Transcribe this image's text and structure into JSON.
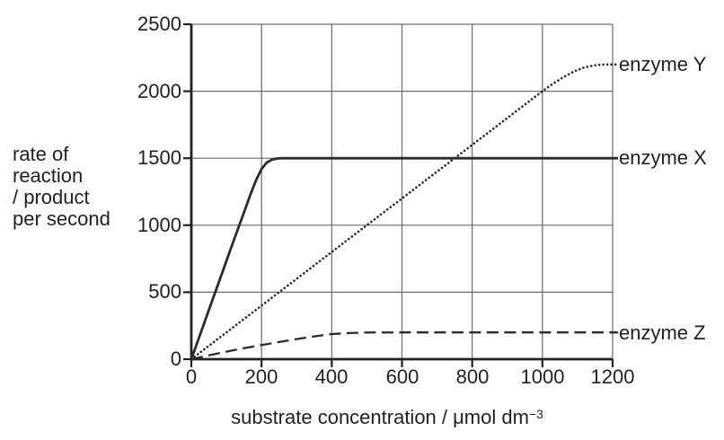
{
  "chart_data": {
    "type": "line",
    "title": "",
    "xlabel": {
      "main": "substrate concentration / μmol dm",
      "sup": "−3"
    },
    "ylabel_lines": [
      "rate of",
      "reaction",
      "/ product",
      "per second"
    ],
    "x_ticks": [
      "0",
      "200",
      "400",
      "600",
      "800",
      "1000",
      "1200"
    ],
    "y_ticks": [
      "0",
      "500",
      "1000",
      "1500",
      "2000",
      "2500"
    ],
    "xlim": [
      0,
      1200
    ],
    "ylim": [
      0,
      2500
    ],
    "grid": true,
    "legend_position": "right-of-plot-inline",
    "colors": {
      "curve": "#2b2b2b",
      "axis": "#222222",
      "grid": "#6b6b6b",
      "text": "#231f20",
      "background": "#ffffff"
    },
    "series": [
      {
        "name": "enzyme X",
        "line_style": "solid",
        "plateau": 1500,
        "points": [
          [
            0,
            0
          ],
          [
            30,
            220
          ],
          [
            60,
            440
          ],
          [
            90,
            660
          ],
          [
            120,
            880
          ],
          [
            150,
            1095
          ],
          [
            170,
            1240
          ],
          [
            185,
            1340
          ],
          [
            200,
            1420
          ],
          [
            215,
            1468
          ],
          [
            230,
            1490
          ],
          [
            245,
            1498
          ],
          [
            260,
            1500
          ],
          [
            1200,
            1500
          ]
        ]
      },
      {
        "name": "enzyme Y",
        "line_style": "dotted",
        "plateau": 2200,
        "points": [
          [
            0,
            0
          ],
          [
            100,
            200
          ],
          [
            200,
            400
          ],
          [
            300,
            600
          ],
          [
            400,
            800
          ],
          [
            500,
            1000
          ],
          [
            600,
            1200
          ],
          [
            700,
            1400
          ],
          [
            800,
            1600
          ],
          [
            900,
            1800
          ],
          [
            1000,
            2000
          ],
          [
            1030,
            2056
          ],
          [
            1060,
            2105
          ],
          [
            1090,
            2148
          ],
          [
            1120,
            2178
          ],
          [
            1150,
            2194
          ],
          [
            1175,
            2199
          ],
          [
            1200,
            2200
          ]
        ]
      },
      {
        "name": "enzyme Z",
        "line_style": "dashed",
        "plateau": 200,
        "points": [
          [
            0,
            0
          ],
          [
            50,
            28
          ],
          [
            100,
            56
          ],
          [
            150,
            82
          ],
          [
            200,
            106
          ],
          [
            250,
            128
          ],
          [
            300,
            150
          ],
          [
            350,
            170
          ],
          [
            400,
            188
          ],
          [
            450,
            195
          ],
          [
            500,
            199
          ],
          [
            600,
            200
          ],
          [
            1200,
            200
          ]
        ]
      }
    ]
  }
}
